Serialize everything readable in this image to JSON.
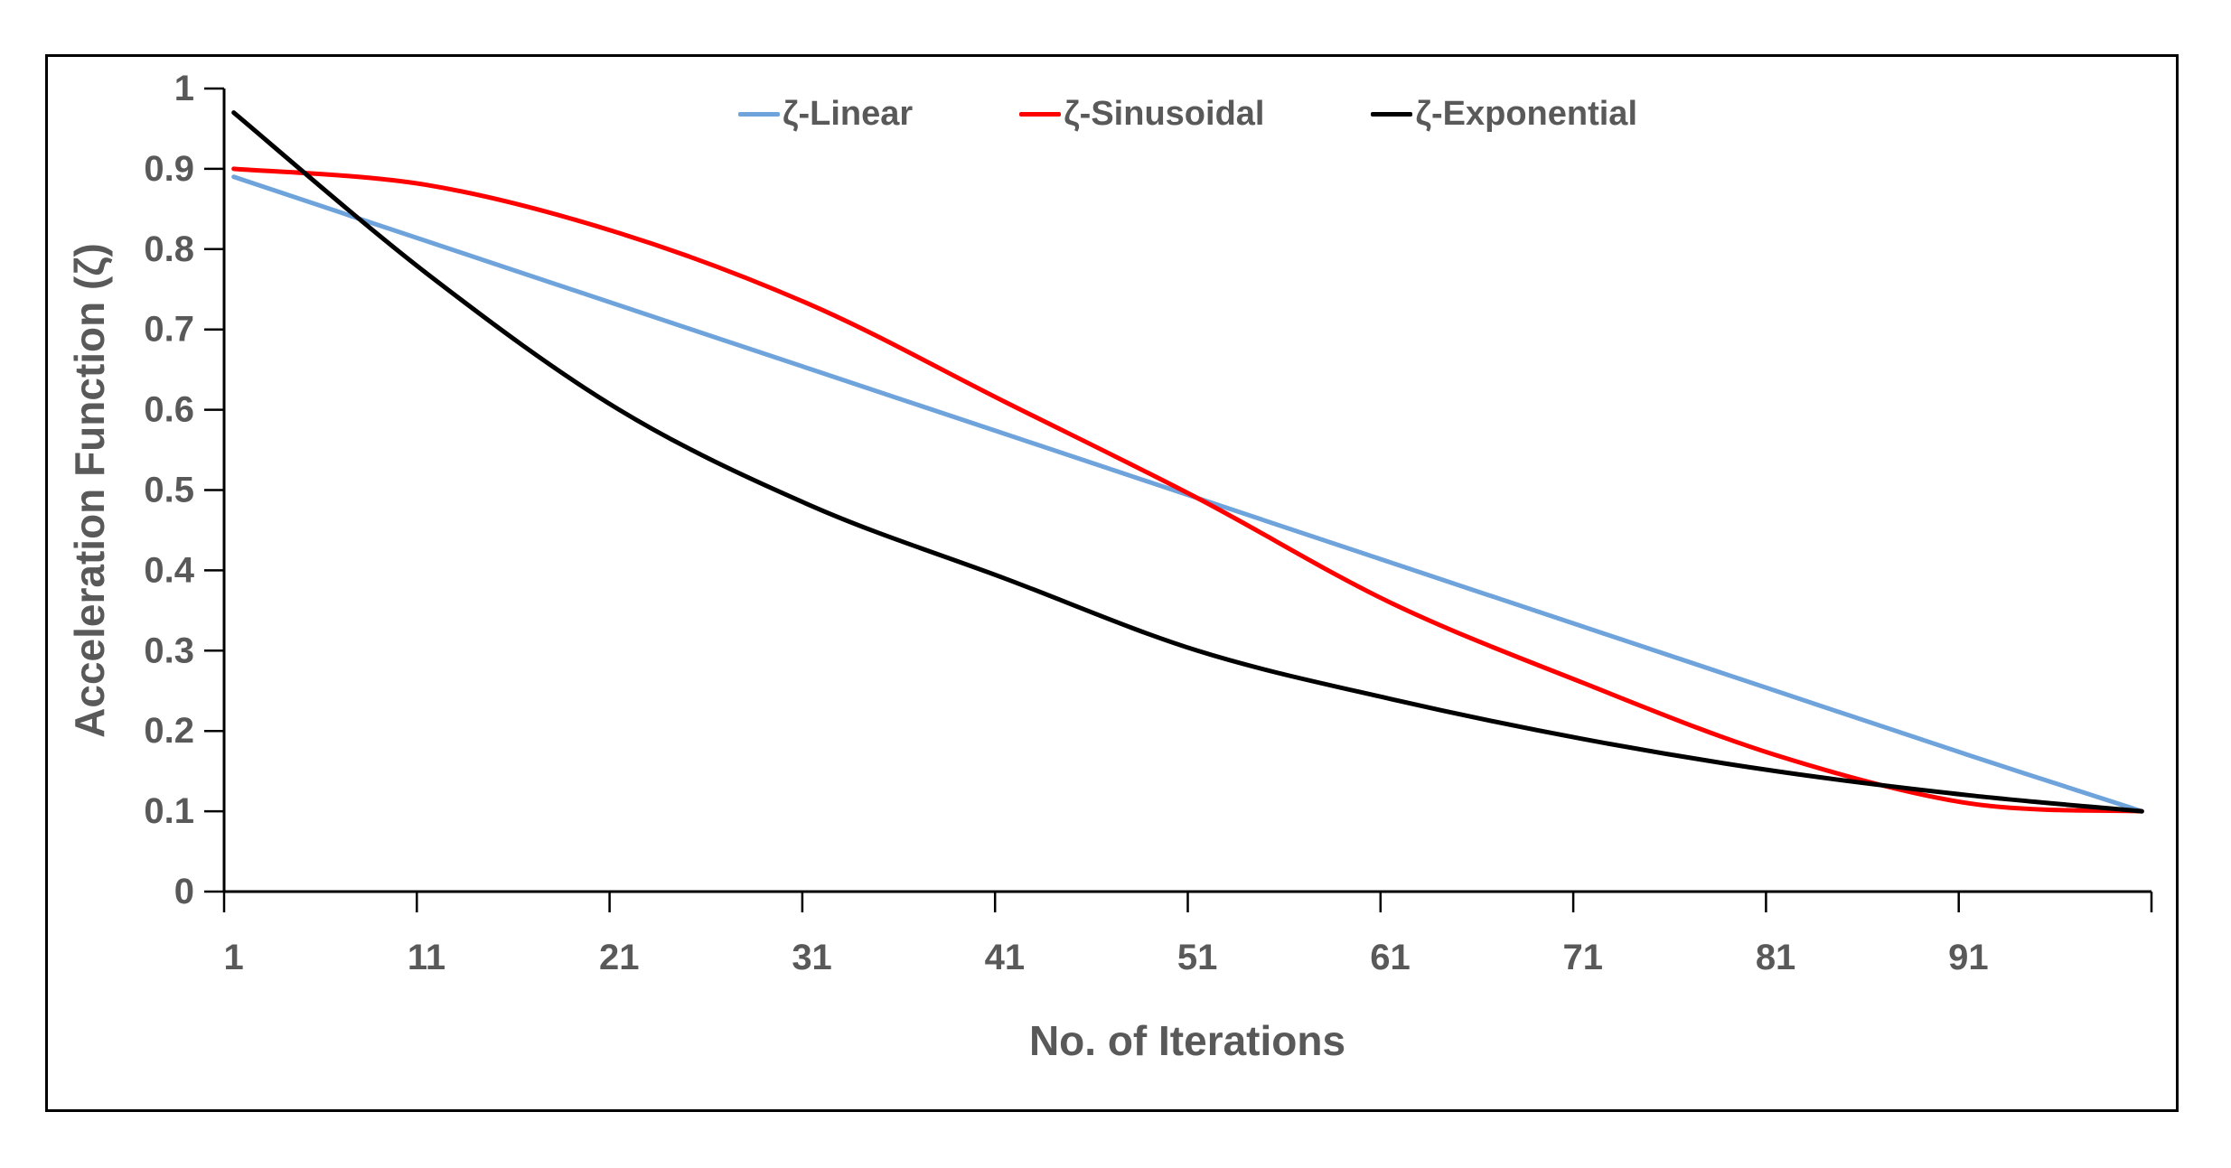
{
  "page": {
    "background_color": "#FFFFFF",
    "frame_border_color": "#000000"
  },
  "chart_data": {
    "type": "line",
    "title": "",
    "xlabel": "No. of Iterations",
    "ylabel": "Acceleration Function (ζ)",
    "grid": false,
    "legend_position": "top-center",
    "axis_color": "#000000",
    "text_color": "#595959",
    "xlim": [
      1,
      100
    ],
    "ylim": [
      0,
      1
    ],
    "x_tick_labels": [
      "1",
      "11",
      "21",
      "31",
      "41",
      "51",
      "61",
      "71",
      "81",
      "91"
    ],
    "x_tick_values": [
      1,
      11,
      21,
      31,
      41,
      51,
      61,
      71,
      81,
      91
    ],
    "x_axis_end": 100,
    "y_tick_labels": [
      "0",
      "0.1",
      "0.2",
      "0.3",
      "0.4",
      "0.5",
      "0.6",
      "0.7",
      "0.8",
      "0.9",
      "1"
    ],
    "y_tick_values": [
      0,
      0.1,
      0.2,
      0.3,
      0.4,
      0.5,
      0.6,
      0.7,
      0.8,
      0.9,
      1
    ],
    "x": [
      1,
      11,
      21,
      31,
      41,
      51,
      61,
      71,
      81,
      91,
      100
    ],
    "series": [
      {
        "name": "ζ-Linear",
        "color": "#6FA3DC",
        "values": [
          0.89,
          0.81,
          0.73,
          0.65,
          0.57,
          0.49,
          0.41,
          0.33,
          0.25,
          0.17,
          0.1
        ]
      },
      {
        "name": "ζ-Sinusoidal",
        "color": "#FF0000",
        "values": [
          0.9,
          0.88,
          0.82,
          0.73,
          0.61,
          0.49,
          0.36,
          0.26,
          0.17,
          0.11,
          0.1
        ]
      },
      {
        "name": "ζ-Exponential",
        "color": "#000000",
        "values": [
          0.97,
          0.77,
          0.6,
          0.48,
          0.39,
          0.3,
          0.24,
          0.19,
          0.15,
          0.12,
          0.1
        ]
      }
    ]
  }
}
